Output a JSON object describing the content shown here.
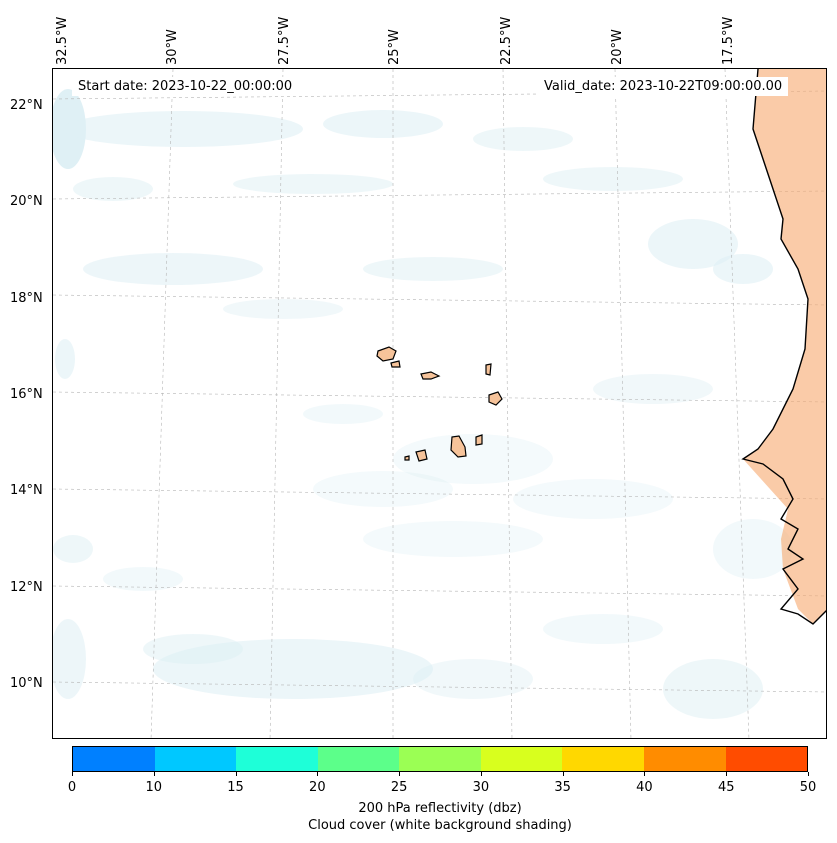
{
  "info": {
    "start_date": "Start date: 2023-10-22_00:00:00",
    "valid_date": "Valid_date: 2023-10-22T09:00:00.00"
  },
  "map": {
    "longitude_labels": [
      "32.5°W",
      "30°W",
      "27.5°W",
      "25°W",
      "22.5°W",
      "20°W",
      "17.5°W"
    ],
    "latitude_labels": [
      "22°N",
      "20°N",
      "18°N",
      "16°N",
      "14°N",
      "12°N",
      "10°N"
    ],
    "cloud_color": "#d4ebf2",
    "land_warm_color": "#f6a86e"
  },
  "colorbar": {
    "ticks": [
      "0",
      "10",
      "15",
      "20",
      "25",
      "30",
      "35",
      "40",
      "45",
      "50"
    ],
    "colors": [
      "#0080ff",
      "#00c8ff",
      "#1effd8",
      "#5cff8a",
      "#9bff54",
      "#d8ff1e",
      "#ffd800",
      "#ff8c00",
      "#ff4c00"
    ],
    "label_line1": "200 hPa reflectivity (dbz)",
    "label_line2": "Cloud cover (white background shading)"
  }
}
